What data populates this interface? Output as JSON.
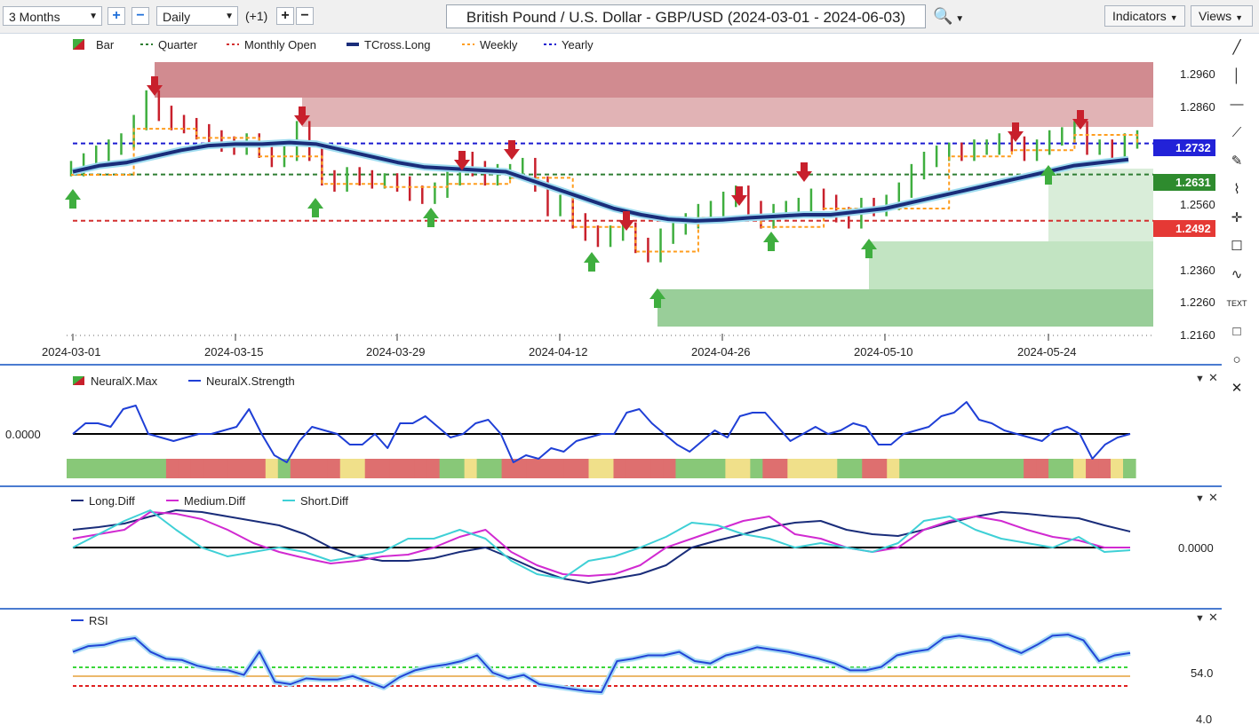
{
  "toolbar": {
    "range": "3 Months",
    "interval": "Daily",
    "offset": "(+1)",
    "plus": "+",
    "minus": "−",
    "title": "British Pound / U.S. Dollar - GBP/USD (2024-03-01 - 2024-06-03)",
    "indicators": "Indicators",
    "views": "Views"
  },
  "tools": [
    "line-tool-icon",
    "vertical-line-icon",
    "horizontal-line-icon",
    "ray-icon",
    "brush-icon",
    "fib-icon",
    "crosshair-icon",
    "comment-icon",
    "wave-icon",
    "text-tool-icon",
    "rectangle-icon",
    "circle-icon",
    "close-icon"
  ],
  "tool_glyphs": [
    "╱",
    "│",
    "—",
    "⟋",
    "✎",
    "⌇",
    "✛",
    "☐",
    "∿",
    "TEXT",
    "□",
    "○",
    "✕"
  ],
  "legend": {
    "bar": "Bar",
    "quarter": "Quarter",
    "monthly": "Monthly Open",
    "tcross": "TCross.Long",
    "weekly": "Weekly",
    "yearly": "Yearly"
  },
  "colors": {
    "up": "#3fae3f",
    "down": "#c8202c",
    "tcross": "#1a2d7a",
    "weekly": "#ff9d1e",
    "quarter": "#2e7d32",
    "monthly": "#d32f2f",
    "yearly": "#1a1ad0",
    "strength": "#1f3fd6",
    "medium": "#d12ad1",
    "short": "#3fd0d6",
    "rsi": "#2245d6"
  },
  "chart_data": [
    {
      "type": "line",
      "title": "British Pound / U.S. Dollar - GBP/USD (2024-03-01 - 2024-06-03)",
      "x_ticks": [
        "2024-03-01",
        "2024-03-15",
        "2024-03-29",
        "2024-04-12",
        "2024-04-26",
        "2024-05-10",
        "2024-05-24"
      ],
      "y_ticks": [
        1.296,
        1.286,
        1.256,
        1.236,
        1.226,
        1.216
      ],
      "price_labels": {
        "yearly": "1.2732",
        "quarter": "1.2631",
        "monthly": "1.2492"
      },
      "levels": {
        "yearly": 1.2732,
        "quarter": 1.2631,
        "monthly": 1.2492
      },
      "ylim": [
        1.213,
        1.302
      ],
      "series": [
        {
          "name": "Bar",
          "values": [
            1.265,
            1.2675,
            1.27,
            1.272,
            1.274,
            1.28,
            1.288,
            1.283,
            1.28,
            1.279,
            1.277,
            1.275,
            1.273,
            1.272,
            1.274,
            1.271,
            1.268,
            1.27,
            1.278,
            1.27,
            1.262,
            1.26,
            1.263,
            1.262,
            1.261,
            1.261,
            1.26,
            1.257,
            1.256,
            1.258,
            1.262,
            1.268,
            1.265,
            1.262,
            1.264,
            1.264,
            1.266,
            1.26,
            1.252,
            1.254,
            1.248,
            1.244,
            1.242,
            1.244,
            1.245,
            1.24,
            1.237,
            1.243,
            1.246,
            1.248,
            1.251,
            1.252,
            1.255,
            1.257,
            1.252,
            1.248,
            1.251,
            1.252,
            1.253,
            1.256,
            1.254,
            1.25,
            1.248,
            1.253,
            1.252,
            1.254,
            1.258,
            1.264,
            1.268,
            1.27,
            1.271,
            1.27,
            1.272,
            1.272,
            1.274,
            1.273,
            1.27,
            1.272,
            1.275,
            1.276,
            1.278,
            1.272,
            1.272,
            1.27,
            1.274,
            1.275
          ]
        },
        {
          "name": "TCross.Long",
          "values": [
            1.264,
            1.266,
            1.267,
            1.269,
            1.271,
            1.2725,
            1.273,
            1.273,
            1.2735,
            1.273,
            1.271,
            1.269,
            1.267,
            1.2655,
            1.265,
            1.2645,
            1.264,
            1.261,
            1.258,
            1.255,
            1.252,
            1.25,
            1.2485,
            1.248,
            1.2483,
            1.249,
            1.2495,
            1.25,
            1.25,
            1.251,
            1.252,
            1.254,
            1.256,
            1.258,
            1.26,
            1.262,
            1.264,
            1.266,
            1.267,
            1.268
          ]
        }
      ]
    },
    {
      "type": "line",
      "title": "",
      "series": [
        {
          "name": "NeuralX.Max",
          "values": []
        },
        {
          "name": "NeuralX.Strength",
          "values": [
            0.0,
            0.15,
            0.15,
            0.1,
            0.35,
            0.4,
            0.0,
            -0.05,
            -0.1,
            -0.05,
            0.0,
            0.0,
            0.05,
            0.1,
            0.35,
            0.0,
            -0.3,
            -0.4,
            -0.1,
            0.1,
            0.05,
            0.0,
            -0.15,
            -0.15,
            0.0,
            -0.2,
            0.15,
            0.15,
            0.25,
            0.1,
            -0.05,
            0.0,
            0.15,
            0.2,
            0.0,
            -0.4,
            -0.3,
            -0.35,
            -0.2,
            -0.25,
            -0.1,
            -0.05,
            0.0,
            0.0,
            0.3,
            0.35,
            0.15,
            0.0,
            -0.15,
            -0.25,
            -0.1,
            0.05,
            -0.05,
            0.25,
            0.3,
            0.3,
            0.1,
            -0.1,
            0.0,
            0.1,
            0.0,
            0.05,
            0.15,
            0.1,
            -0.15,
            -0.15,
            0.0,
            0.05,
            0.1,
            0.25,
            0.3,
            0.45,
            0.2,
            0.15,
            0.05,
            0.0,
            -0.05,
            -0.1,
            0.05,
            0.1,
            0.0,
            -0.35,
            -0.15,
            -0.05,
            0.0
          ]
        }
      ],
      "y_ticks": [
        "0.0000"
      ],
      "zone_colors": [
        "#88c878",
        "#de6f6f",
        "#f0e08a"
      ],
      "zones": [
        0,
        0,
        0,
        0,
        0,
        0,
        0,
        0,
        1,
        1,
        1,
        1,
        1,
        1,
        1,
        1,
        2,
        0,
        1,
        1,
        1,
        1,
        2,
        2,
        1,
        1,
        1,
        1,
        1,
        1,
        0,
        0,
        2,
        0,
        0,
        1,
        1,
        1,
        1,
        1,
        1,
        1,
        2,
        2,
        1,
        1,
        1,
        1,
        1,
        0,
        0,
        0,
        0,
        2,
        2,
        0,
        1,
        1,
        2,
        2,
        2,
        2,
        0,
        0,
        1,
        1,
        2,
        0,
        0,
        0,
        0,
        0,
        0,
        0,
        0,
        0,
        0,
        1,
        1,
        0,
        0,
        2,
        1,
        1,
        2,
        0
      ]
    },
    {
      "type": "line",
      "title": "",
      "y_ticks": [
        "0.0000"
      ],
      "series": [
        {
          "name": "Long.Diff",
          "values": [
            0.2,
            0.23,
            0.27,
            0.35,
            0.42,
            0.4,
            0.35,
            0.3,
            0.25,
            0.15,
            0.0,
            -0.1,
            -0.15,
            -0.15,
            -0.12,
            -0.05,
            0.0,
            -0.12,
            -0.25,
            -0.35,
            -0.4,
            -0.35,
            -0.3,
            -0.2,
            0.0,
            0.08,
            0.15,
            0.23,
            0.28,
            0.3,
            0.2,
            0.15,
            0.13,
            0.2,
            0.28,
            0.35,
            0.4,
            0.38,
            0.35,
            0.33,
            0.25,
            0.18
          ]
        },
        {
          "name": "Medium.Diff",
          "values": [
            0.1,
            0.15,
            0.2,
            0.4,
            0.38,
            0.32,
            0.2,
            0.05,
            -0.05,
            -0.12,
            -0.18,
            -0.15,
            -0.1,
            -0.08,
            0.0,
            0.12,
            0.2,
            -0.05,
            -0.2,
            -0.3,
            -0.32,
            -0.3,
            -0.2,
            0.0,
            0.1,
            0.2,
            0.3,
            0.35,
            0.15,
            0.1,
            0.0,
            -0.05,
            0.0,
            0.2,
            0.3,
            0.35,
            0.3,
            0.2,
            0.12,
            0.08,
            0.0,
            0.0
          ]
        },
        {
          "name": "Short.Diff",
          "values": [
            0.0,
            0.15,
            0.3,
            0.42,
            0.2,
            0.0,
            -0.1,
            -0.05,
            0.0,
            -0.05,
            -0.15,
            -0.1,
            -0.05,
            0.1,
            0.1,
            0.2,
            0.1,
            -0.15,
            -0.3,
            -0.35,
            -0.15,
            -0.1,
            0.0,
            0.12,
            0.28,
            0.25,
            0.15,
            0.1,
            0.0,
            0.05,
            0.0,
            -0.05,
            0.05,
            0.3,
            0.35,
            0.2,
            0.1,
            0.05,
            0.0,
            0.12,
            -0.05,
            -0.03
          ]
        }
      ]
    },
    {
      "type": "line",
      "title": "",
      "y_ticks": [
        "54.0",
        "4.0"
      ],
      "levels": [
        57,
        54,
        50
      ],
      "ylim": [
        0,
        100
      ],
      "series": [
        {
          "name": "RSI",
          "values": [
            58,
            63,
            64,
            68,
            70,
            58,
            52,
            51,
            46,
            43,
            42,
            38,
            58,
            32,
            30,
            35,
            34,
            34,
            37,
            32,
            27,
            36,
            42,
            45,
            47,
            50,
            55,
            40,
            35,
            38,
            30,
            28,
            26,
            24,
            23,
            50,
            52,
            55,
            55,
            58,
            50,
            48,
            55,
            58,
            62,
            60,
            58,
            55,
            52,
            48,
            42,
            42,
            45,
            55,
            58,
            60,
            70,
            72,
            70,
            68,
            62,
            57,
            64,
            72,
            73,
            68,
            50,
            55,
            57
          ]
        }
      ]
    }
  ]
}
